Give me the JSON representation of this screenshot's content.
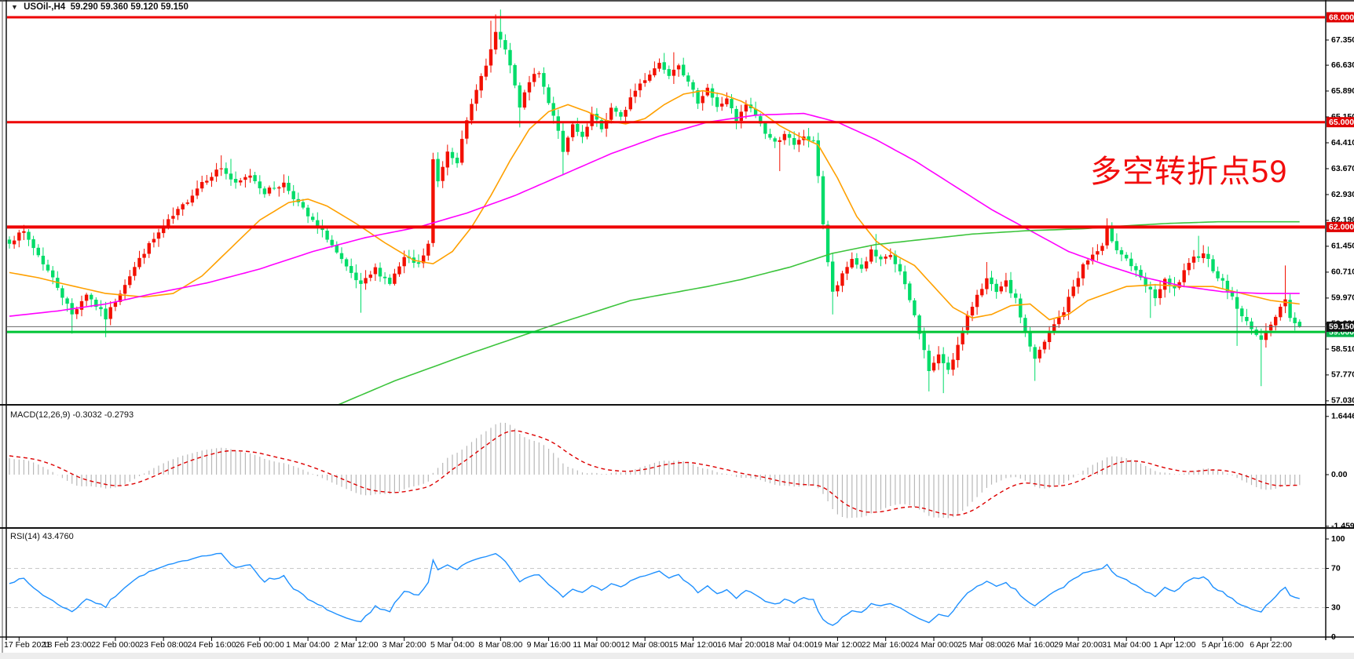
{
  "header": {
    "symbol_period": "USOil-,H4",
    "ohlc_text": "59.290 59.360 59.120 59.150"
  },
  "icons": {
    "dropdown_arrow": "▼"
  },
  "annotation": {
    "text": "多空转折点59",
    "color": "#f20d0d"
  },
  "colors": {
    "candle_up": "#f21000",
    "candle_down": "#00dc69",
    "ma_fast": "#ffa000",
    "ma_medium": "#ff00ff",
    "ma_slow": "#3cc43c",
    "hline_red": "#ee0000",
    "hline_green": "#00c435",
    "current_price_line": "#666666",
    "badge_red": "#e00000",
    "badge_green": "#00b44a",
    "badge_black": "#111111",
    "macd_hist": "#b8b8b8",
    "macd_signal": "#dd0000",
    "rsi_line": "#1e90ff",
    "rsi_levels": "#c8c8c8"
  },
  "chart_data": {
    "type": "candlestick",
    "title": "USOil-,H4 59.290 59.360 59.120 59.150",
    "symbol": "USOil-",
    "timeframe": "H4",
    "current_bar_ohlc": [
      59.29,
      59.36,
      59.12,
      59.15
    ],
    "current_price": 59.15,
    "current_price_label": "59.150",
    "ylim_main": [
      56.9,
      68.27
    ],
    "bar_count": 269,
    "time_labels": [
      "17 Feb 2021",
      "18 Feb 23:00",
      "22 Feb 00:00",
      "23 Feb 08:00",
      "24 Feb 16:00",
      "26 Feb 00:00",
      "1 Mar 04:00",
      "2 Mar 12:00",
      "3 Mar 20:00",
      "5 Mar 04:00",
      "8 Mar 08:00",
      "9 Mar 16:00",
      "11 Mar 00:00",
      "12 Mar 08:00",
      "15 Mar 12:00",
      "16 Mar 20:00",
      "18 Mar 04:00",
      "19 Mar 12:00",
      "22 Mar 16:00",
      "24 Mar 00:00",
      "25 Mar 08:00",
      "26 Mar 16:00",
      "29 Mar 20:00",
      "31 Mar 04:00",
      "1 Apr 12:00",
      "5 Apr 16:00",
      "6 Apr 22:00"
    ],
    "price_axis_ticks": [
      67.35,
      66.63,
      65.89,
      65.15,
      64.41,
      63.67,
      62.93,
      62.19,
      61.45,
      60.71,
      59.97,
      59.23,
      58.51,
      57.77,
      57.03
    ],
    "horizontal_lines": [
      {
        "price": 68.0,
        "label": "68.000",
        "color": "red",
        "width": 3
      },
      {
        "price": 65.0,
        "label": "65.000",
        "color": "red",
        "width": 3
      },
      {
        "price": 62.0,
        "label": "62.000",
        "color": "red",
        "width": 4
      },
      {
        "price": 59.0,
        "label": "59.000",
        "color": "green",
        "width": 3
      }
    ],
    "close_anchors": [
      [
        0,
        61.6
      ],
      [
        3,
        61.85
      ],
      [
        6,
        61.2
      ],
      [
        10,
        60.3
      ],
      [
        13,
        59.5
      ],
      [
        16,
        60.1
      ],
      [
        20,
        59.4
      ],
      [
        24,
        60.4
      ],
      [
        28,
        61.3
      ],
      [
        32,
        62.0
      ],
      [
        36,
        62.6
      ],
      [
        40,
        63.3
      ],
      [
        44,
        63.7
      ],
      [
        47,
        63.2
      ],
      [
        50,
        63.5
      ],
      [
        53,
        63.0
      ],
      [
        57,
        63.25
      ],
      [
        62,
        62.3
      ],
      [
        66,
        61.7
      ],
      [
        70,
        60.8
      ],
      [
        73,
        60.3
      ],
      [
        76,
        60.8
      ],
      [
        79,
        60.4
      ],
      [
        82,
        61.1
      ],
      [
        85,
        60.9
      ],
      [
        87,
        61.5
      ],
      [
        88,
        63.9
      ],
      [
        89,
        63.3
      ],
      [
        91,
        64.2
      ],
      [
        93,
        63.9
      ],
      [
        95,
        65.0
      ],
      [
        97,
        66.0
      ],
      [
        99,
        66.6
      ],
      [
        101,
        67.5
      ],
      [
        102,
        67.4
      ],
      [
        104,
        66.6
      ],
      [
        106,
        65.4
      ],
      [
        108,
        66.2
      ],
      [
        110,
        66.4
      ],
      [
        112,
        65.6
      ],
      [
        114,
        64.8
      ],
      [
        115,
        64.1
      ],
      [
        117,
        64.9
      ],
      [
        119,
        64.5
      ],
      [
        121,
        65.2
      ],
      [
        123,
        64.8
      ],
      [
        125,
        65.4
      ],
      [
        127,
        65.1
      ],
      [
        129,
        65.7
      ],
      [
        131,
        66.1
      ],
      [
        133,
        66.4
      ],
      [
        135,
        66.7
      ],
      [
        137,
        66.4
      ],
      [
        139,
        66.7
      ],
      [
        141,
        66.1
      ],
      [
        143,
        65.6
      ],
      [
        145,
        66.0
      ],
      [
        147,
        65.4
      ],
      [
        149,
        65.7
      ],
      [
        151,
        65.0
      ],
      [
        153,
        65.5
      ],
      [
        155,
        65.2
      ],
      [
        157,
        64.7
      ],
      [
        159,
        64.4
      ],
      [
        161,
        64.7
      ],
      [
        163,
        64.3
      ],
      [
        165,
        64.6
      ],
      [
        167,
        64.4
      ],
      [
        168,
        63.5
      ],
      [
        169,
        62.1
      ],
      [
        170,
        61.0
      ],
      [
        171,
        60.1
      ],
      [
        173,
        60.6
      ],
      [
        175,
        61.1
      ],
      [
        177,
        60.8
      ],
      [
        179,
        61.3
      ],
      [
        181,
        61.0
      ],
      [
        183,
        61.2
      ],
      [
        185,
        60.7
      ],
      [
        187,
        59.9
      ],
      [
        189,
        59.0
      ],
      [
        191,
        57.9
      ],
      [
        193,
        58.3
      ],
      [
        195,
        57.95
      ],
      [
        197,
        58.6
      ],
      [
        199,
        59.4
      ],
      [
        201,
        60.1
      ],
      [
        203,
        60.5
      ],
      [
        205,
        60.1
      ],
      [
        207,
        60.4
      ],
      [
        209,
        59.9
      ],
      [
        211,
        59.0
      ],
      [
        213,
        58.2
      ],
      [
        215,
        58.7
      ],
      [
        217,
        59.2
      ],
      [
        219,
        59.6
      ],
      [
        221,
        60.3
      ],
      [
        223,
        60.9
      ],
      [
        225,
        61.2
      ],
      [
        227,
        61.4
      ],
      [
        228,
        61.9
      ],
      [
        230,
        61.4
      ],
      [
        232,
        61.1
      ],
      [
        234,
        60.7
      ],
      [
        236,
        60.3
      ],
      [
        238,
        60.0
      ],
      [
        240,
        60.45
      ],
      [
        242,
        60.2
      ],
      [
        244,
        60.7
      ],
      [
        246,
        61.1
      ],
      [
        248,
        61.3
      ],
      [
        250,
        60.8
      ],
      [
        252,
        60.4
      ],
      [
        254,
        60.0
      ],
      [
        256,
        59.4
      ],
      [
        258,
        59.15
      ],
      [
        260,
        58.7
      ],
      [
        261,
        59.1
      ],
      [
        263,
        59.45
      ],
      [
        265,
        59.9
      ],
      [
        266,
        59.4
      ],
      [
        267,
        59.25
      ],
      [
        268,
        59.15
      ]
    ],
    "wick_overrides": {
      "13": {
        "low": 58.95
      },
      "20": {
        "low": 58.85
      },
      "44": {
        "high": 64.05
      },
      "46": {
        "high": 63.95
      },
      "73": {
        "low": 59.55
      },
      "100": {
        "high": 67.9
      },
      "101": {
        "high": 68.08
      },
      "102": {
        "high": 68.22
      },
      "106": {
        "low": 64.85
      },
      "115": {
        "low": 63.5
      },
      "136": {
        "high": 66.98
      },
      "138": {
        "high": 67.0
      },
      "160": {
        "low": 63.6
      },
      "171": {
        "low": 59.5
      },
      "180": {
        "high": 61.8
      },
      "191": {
        "low": 57.3
      },
      "194": {
        "low": 57.25
      },
      "203": {
        "high": 61.0
      },
      "213": {
        "low": 57.6
      },
      "228": {
        "high": 62.25
      },
      "237": {
        "low": 59.4
      },
      "247": {
        "high": 61.75
      },
      "255": {
        "low": 58.6
      },
      "260": {
        "low": 57.45
      },
      "265": {
        "high": 60.9
      },
      "268": {
        "open": 59.29,
        "high": 59.36,
        "low": 59.12
      }
    },
    "moving_averages": [
      {
        "name": "fast-orange",
        "anchors": [
          [
            0,
            60.7
          ],
          [
            6,
            60.55
          ],
          [
            12,
            60.35
          ],
          [
            20,
            60.1
          ],
          [
            28,
            60.0
          ],
          [
            34,
            60.1
          ],
          [
            40,
            60.6
          ],
          [
            46,
            61.4
          ],
          [
            52,
            62.2
          ],
          [
            58,
            62.7
          ],
          [
            62,
            62.8
          ],
          [
            66,
            62.6
          ],
          [
            72,
            62.1
          ],
          [
            78,
            61.55
          ],
          [
            84,
            61.05
          ],
          [
            88,
            60.95
          ],
          [
            92,
            61.3
          ],
          [
            96,
            62.0
          ],
          [
            100,
            62.9
          ],
          [
            104,
            63.9
          ],
          [
            108,
            64.8
          ],
          [
            112,
            65.3
          ],
          [
            116,
            65.5
          ],
          [
            120,
            65.3
          ],
          [
            124,
            65.05
          ],
          [
            128,
            64.95
          ],
          [
            132,
            65.1
          ],
          [
            136,
            65.5
          ],
          [
            140,
            65.8
          ],
          [
            144,
            65.9
          ],
          [
            148,
            65.8
          ],
          [
            152,
            65.6
          ],
          [
            156,
            65.3
          ],
          [
            160,
            64.9
          ],
          [
            164,
            64.6
          ],
          [
            168,
            64.35
          ],
          [
            172,
            63.4
          ],
          [
            176,
            62.3
          ],
          [
            180,
            61.6
          ],
          [
            184,
            61.2
          ],
          [
            188,
            60.9
          ],
          [
            192,
            60.3
          ],
          [
            196,
            59.7
          ],
          [
            200,
            59.4
          ],
          [
            204,
            59.5
          ],
          [
            208,
            59.75
          ],
          [
            212,
            59.8
          ],
          [
            216,
            59.35
          ],
          [
            220,
            59.5
          ],
          [
            224,
            59.9
          ],
          [
            228,
            60.1
          ],
          [
            232,
            60.3
          ],
          [
            238,
            60.35
          ],
          [
            244,
            60.3
          ],
          [
            250,
            60.3
          ],
          [
            256,
            60.1
          ],
          [
            262,
            59.9
          ],
          [
            268,
            59.8
          ]
        ]
      },
      {
        "name": "medium-magenta",
        "anchors": [
          [
            0,
            59.45
          ],
          [
            10,
            59.6
          ],
          [
            20,
            59.8
          ],
          [
            30,
            60.1
          ],
          [
            41,
            60.4
          ],
          [
            52,
            60.8
          ],
          [
            63,
            61.3
          ],
          [
            74,
            61.7
          ],
          [
            85,
            62.0
          ],
          [
            95,
            62.4
          ],
          [
            105,
            62.9
          ],
          [
            115,
            63.5
          ],
          [
            125,
            64.1
          ],
          [
            135,
            64.6
          ],
          [
            145,
            65.0
          ],
          [
            155,
            65.2
          ],
          [
            165,
            65.25
          ],
          [
            172,
            65.0
          ],
          [
            180,
            64.5
          ],
          [
            188,
            63.9
          ],
          [
            196,
            63.2
          ],
          [
            204,
            62.5
          ],
          [
            212,
            61.9
          ],
          [
            220,
            61.3
          ],
          [
            228,
            60.9
          ],
          [
            236,
            60.55
          ],
          [
            244,
            60.3
          ],
          [
            252,
            60.15
          ],
          [
            260,
            60.1
          ],
          [
            268,
            60.1
          ]
        ]
      },
      {
        "name": "slow-green",
        "anchors": [
          [
            68,
            56.9
          ],
          [
            80,
            57.6
          ],
          [
            96,
            58.4
          ],
          [
            113,
            59.2
          ],
          [
            129,
            59.9
          ],
          [
            145,
            60.3
          ],
          [
            152,
            60.5
          ],
          [
            162,
            60.85
          ],
          [
            171,
            61.25
          ],
          [
            180,
            61.5
          ],
          [
            190,
            61.65
          ],
          [
            200,
            61.8
          ],
          [
            212,
            61.9
          ],
          [
            223,
            61.95
          ],
          [
            230,
            62.02
          ],
          [
            240,
            62.1
          ],
          [
            251,
            62.15
          ],
          [
            268,
            62.15
          ]
        ]
      }
    ],
    "macd": {
      "label": "MACD(12,26,9)",
      "value_main": "-0.3032",
      "value_signal": "-0.2793",
      "params": [
        12,
        26,
        9
      ],
      "axis_ticks": [
        "1.6446",
        "0.00",
        "-1.4594"
      ],
      "axis_values": [
        1.6446,
        0,
        -1.4594
      ]
    },
    "rsi": {
      "label": "RSI(14)",
      "value": "43.4760",
      "period": 14,
      "axis_ticks": [
        "100",
        "70",
        "30",
        "0"
      ],
      "axis_values": [
        100,
        70,
        30,
        0
      ],
      "level_lines": [
        70,
        30
      ]
    }
  }
}
